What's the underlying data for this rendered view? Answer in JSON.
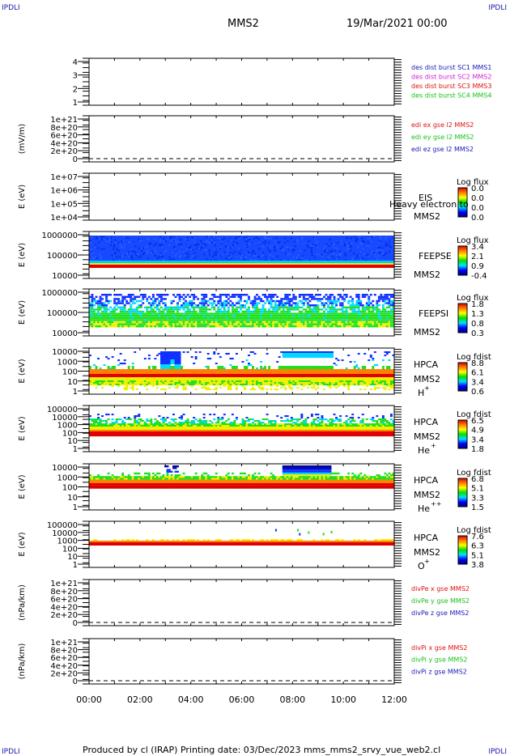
{
  "header": {
    "corner_left_top": "IPDLI",
    "corner_right_top": "IPDLI",
    "corner_left_bottom": "IPDLI",
    "corner_right_bottom": "IPDLI",
    "spacecraft": "MMS2",
    "date": "19/Mar/2021 00:00"
  },
  "footer": {
    "text": "Produced by cl (IRAP)   Printing date: 03/Dec/2023   mms_mms2_srvy_vue_web2.cl"
  },
  "colors": {
    "blue": "#1a1ab8",
    "magenta": "#d020d0",
    "red": "#e01010",
    "green": "#18c018"
  },
  "chart_data": [
    {
      "type": "line",
      "panel": "burst",
      "yticks": [
        "1",
        "2",
        "3",
        "4"
      ],
      "ylim": [
        1,
        4
      ],
      "legend_placement": "right",
      "legend": [
        {
          "label": "des dist burst SC1 MMS1",
          "color": "#1a1ab8"
        },
        {
          "label": "des dist burst SC2 MMS2",
          "color": "#d020d0"
        },
        {
          "label": "des dist burst SC3 MMS3",
          "color": "#e01010"
        },
        {
          "label": "des dist burst SC4 MMS4",
          "color": "#18c018"
        }
      ],
      "series": []
    },
    {
      "type": "line",
      "panel": "edi",
      "ylabel": "(mV/m)",
      "yticks": [
        "0",
        "2e+20",
        "4e+20",
        "6e+20",
        "8e+20",
        "1e+21"
      ],
      "ylim": [
        0,
        1e+21
      ],
      "legend_placement": "right",
      "legend": [
        {
          "label": "edi ex gse l2 MMS2",
          "color": "#e01010"
        },
        {
          "label": "edi ey gse l2 MMS2",
          "color": "#18c018"
        },
        {
          "label": "edi ez gse l2 MMS2",
          "color": "#1a1ab8"
        }
      ],
      "series": []
    },
    {
      "type": "heatmap",
      "panel": "eis",
      "ylabel": "E (eV)",
      "yticks": [
        "1e+04",
        "1e+05",
        "1e+06",
        "1e+07"
      ],
      "ylim": [
        10000,
        10000000
      ],
      "scale": "log",
      "side_labels": [
        "EIS",
        "MMS2"
      ],
      "overlay_text": "Heavy electron to",
      "colorbar": {
        "title": "Log flux",
        "ticks": [
          "0.0",
          "0.0",
          "0.0",
          "0.0"
        ]
      }
    },
    {
      "type": "heatmap",
      "panel": "feepse",
      "ylabel": "E (eV)",
      "yticks": [
        "10000",
        "100000",
        "1000000"
      ],
      "ylim": [
        10000,
        1000000
      ],
      "scale": "log",
      "side_labels": [
        "FEEPSE",
        "MMS2"
      ],
      "colorbar": {
        "title": "Log flux",
        "ticks": [
          "3.4",
          "2.1",
          "0.9",
          "-0.4"
        ]
      }
    },
    {
      "type": "heatmap",
      "panel": "feepsi",
      "ylabel": "E (eV)",
      "yticks": [
        "10000",
        "100000",
        "1000000"
      ],
      "ylim": [
        10000,
        1000000
      ],
      "scale": "log",
      "side_labels": [
        "FEEPSI",
        "MMS2"
      ],
      "colorbar": {
        "title": "Log flux",
        "ticks": [
          "1.8",
          "1.3",
          "0.8",
          "0.3"
        ]
      }
    },
    {
      "type": "heatmap",
      "panel": "hpca_h",
      "ylabel": "E (eV)",
      "yticks": [
        "1",
        "10",
        "100",
        "1000",
        "10000"
      ],
      "ylim": [
        1,
        40000
      ],
      "scale": "log",
      "side_labels": [
        "HPCA",
        "MMS2",
        "H"
      ],
      "species_sup": "+",
      "colorbar": {
        "title": "Log fdist",
        "ticks": [
          "8.8",
          "6.1",
          "3.4",
          "0.6"
        ]
      }
    },
    {
      "type": "heatmap",
      "panel": "hpca_he",
      "ylabel": "E (eV)",
      "yticks": [
        "1",
        "10",
        "100",
        "1000",
        "10000",
        "100000"
      ],
      "ylim": [
        1,
        100000
      ],
      "scale": "log",
      "side_labels": [
        "HPCA",
        "MMS2",
        "He"
      ],
      "species_sup": "+",
      "colorbar": {
        "title": "Log fdist",
        "ticks": [
          "6.5",
          "4.9",
          "3.4",
          "1.8"
        ]
      }
    },
    {
      "type": "heatmap",
      "panel": "hpca_hepp",
      "ylabel": "E (eV)",
      "yticks": [
        "1",
        "10",
        "100",
        "1000",
        "10000"
      ],
      "ylim": [
        1,
        40000
      ],
      "scale": "log",
      "side_labels": [
        "HPCA",
        "MMS2",
        "He"
      ],
      "species_sup": "++",
      "colorbar": {
        "title": "Log fdist",
        "ticks": [
          "6.8",
          "5.1",
          "3.3",
          "1.5"
        ]
      }
    },
    {
      "type": "heatmap",
      "panel": "hpca_o",
      "ylabel": "E (eV)",
      "yticks": [
        "1",
        "10",
        "100",
        "1000",
        "10000",
        "100000"
      ],
      "ylim": [
        1,
        100000
      ],
      "scale": "log",
      "side_labels": [
        "HPCA",
        "MMS2",
        "O"
      ],
      "species_sup": "+",
      "colorbar": {
        "title": "Log fdist",
        "ticks": [
          "7.6",
          "6.3",
          "5.1",
          "3.8"
        ]
      }
    },
    {
      "type": "line",
      "panel": "divpe",
      "ylabel": "(nPa/km)",
      "yticks": [
        "0",
        "2e+20",
        "4e+20",
        "6e+20",
        "8e+20",
        "1e+21"
      ],
      "ylim": [
        0,
        1e+21
      ],
      "legend_placement": "right",
      "legend": [
        {
          "label": "divPe x gse MMS2",
          "color": "#e01010"
        },
        {
          "label": "divPe y gse MMS2",
          "color": "#18c018"
        },
        {
          "label": "divPe z gse MMS2",
          "color": "#1a1ab8"
        }
      ],
      "series": []
    },
    {
      "type": "line",
      "panel": "divpi",
      "ylabel": "(nPa/km)",
      "yticks": [
        "0",
        "2e+20",
        "4e+20",
        "6e+20",
        "8e+20",
        "1e+21"
      ],
      "ylim": [
        0,
        1e+21
      ],
      "legend_placement": "right",
      "legend": [
        {
          "label": "divPi x gse MMS2",
          "color": "#e01010"
        },
        {
          "label": "divPi y gse MMS2",
          "color": "#18c018"
        },
        {
          "label": "divPi z gse MMS2",
          "color": "#1a1ab8"
        }
      ],
      "series": []
    }
  ],
  "xaxis": {
    "ticks": [
      "00:00",
      "02:00",
      "04:00",
      "06:00",
      "08:00",
      "10:00",
      "12:00"
    ],
    "range": [
      "00:00",
      "12:00"
    ]
  }
}
